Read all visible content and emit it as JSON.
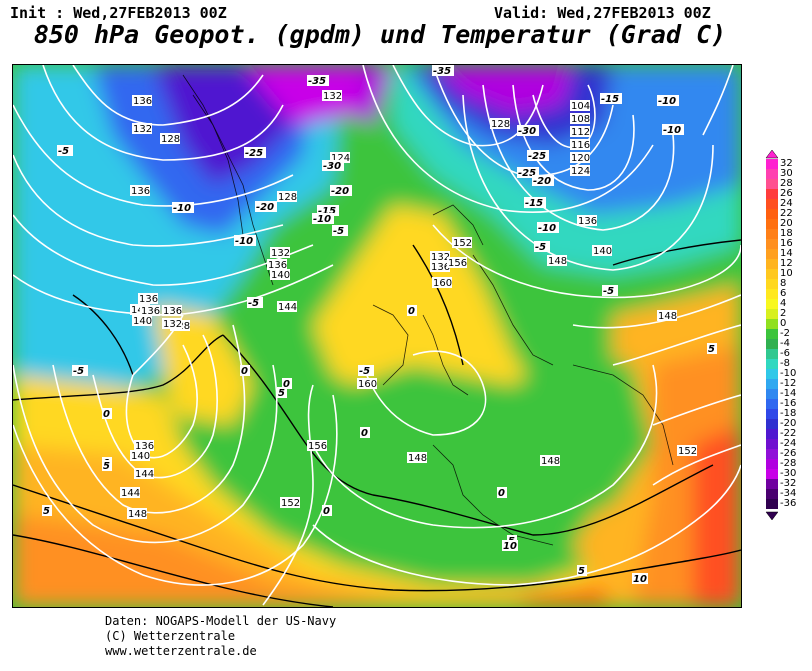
{
  "header": {
    "init": "Init : Wed,27FEB2013 00Z",
    "valid": "Valid: Wed,27FEB2013 00Z",
    "title": "850 hPa Geopot. (gpdm) und Temperatur (Grad C)"
  },
  "footer": {
    "line1": "Daten: NOGAPS-Modell der US-Navy",
    "line2": "(C) Wetterzentrale",
    "line3": "www.wetterzentrale.de"
  },
  "legend": {
    "labels": [
      "32",
      "30",
      "28",
      "26",
      "24",
      "22",
      "20",
      "18",
      "16",
      "14",
      "12",
      "10",
      "8",
      "6",
      "4",
      "2",
      "0",
      "-2",
      "-4",
      "-6",
      "-8",
      "-10",
      "-12",
      "-14",
      "-16",
      "-18",
      "-20",
      "-22",
      "-24",
      "-26",
      "-28",
      "-30",
      "-32",
      "-34",
      "-36"
    ],
    "colors": [
      "#ff20d0",
      "#ff40b0",
      "#ff5090",
      "#ff3c3c",
      "#ff5020",
      "#ff6010",
      "#ff7010",
      "#ff8018",
      "#ff9020",
      "#ffa020",
      "#ffb420",
      "#ffc820",
      "#ffd820",
      "#ffe820",
      "#f8f820",
      "#d8f020",
      "#90e020",
      "#3cc43c",
      "#30b050",
      "#30c890",
      "#30d8c0",
      "#30c8e8",
      "#30a8f0",
      "#3088f0",
      "#3068f0",
      "#3048e8",
      "#3030d0",
      "#5018d0",
      "#7010d0",
      "#9010d8",
      "#b000e0",
      "#c800e8",
      "#7000a0",
      "#4a0070",
      "#300050"
    ]
  },
  "map": {
    "geopotential_labels_gpdm": [
      "104",
      "108",
      "112",
      "116",
      "120",
      "124",
      "124",
      "128",
      "128",
      "128",
      "128",
      "132",
      "132",
      "132",
      "132",
      "132",
      "136",
      "136",
      "136",
      "136",
      "136",
      "136",
      "136",
      "140",
      "140",
      "140",
      "140",
      "144",
      "144",
      "144",
      "148",
      "148",
      "148",
      "148",
      "148",
      "152",
      "152",
      "152",
      "156",
      "156",
      "160",
      "160",
      "136",
      "136",
      "140",
      "148"
    ],
    "temperature_labels_c": [
      "-35",
      "-35",
      "-30",
      "-30",
      "-25",
      "-25",
      "-25",
      "-20",
      "-20",
      "-20",
      "-15",
      "-15",
      "-15",
      "-10",
      "-10",
      "-10",
      "-10",
      "-10",
      "-10",
      "-5",
      "-5",
      "-5",
      "-5",
      "-5",
      "-5",
      "-5",
      "0",
      "0",
      "0",
      "0",
      "0",
      "0",
      "0",
      "5",
      "5",
      "5",
      "5",
      "5",
      "10",
      "10",
      "5",
      "0"
    ]
  }
}
